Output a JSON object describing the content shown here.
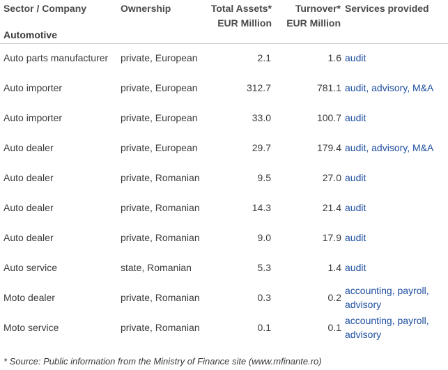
{
  "header": {
    "sector": "Sector / Company",
    "ownership": "Ownership",
    "total_assets": "Total Assets*",
    "total_assets_unit": "EUR Million",
    "turnover": "Turnover*",
    "turnover_unit": "EUR Million",
    "services": "Services provided"
  },
  "section": "Automotive",
  "rows": [
    {
      "sector": "Auto parts manufacturer",
      "ownership": "private, European",
      "total_assets": "2.1",
      "turnover": "1.6",
      "services": "audit"
    },
    {
      "sector": "Auto importer",
      "ownership": "private, European",
      "total_assets": "312.7",
      "turnover": "781.1",
      "services": "audit, advisory, M&A"
    },
    {
      "sector": "Auto importer",
      "ownership": "private, European",
      "total_assets": "33.0",
      "turnover": "100.7",
      "services": "audit"
    },
    {
      "sector": "Auto dealer",
      "ownership": "private, European",
      "total_assets": "29.7",
      "turnover": "179.4",
      "services": "audit, advisory, M&A"
    },
    {
      "sector": "Auto dealer",
      "ownership": "private, Romanian",
      "total_assets": "9.5",
      "turnover": "27.0",
      "services": "audit"
    },
    {
      "sector": "Auto dealer",
      "ownership": "private, Romanian",
      "total_assets": "14.3",
      "turnover": "21.4",
      "services": "audit"
    },
    {
      "sector": "Auto dealer",
      "ownership": "private, Romanian",
      "total_assets": "9.0",
      "turnover": "17.9",
      "services": "audit"
    },
    {
      "sector": "Auto service",
      "ownership": "state, Romanian",
      "total_assets": "5.3",
      "turnover": "1.4",
      "services": "audit"
    },
    {
      "sector": "Moto dealer",
      "ownership": "private, Romanian",
      "total_assets": "0.3",
      "turnover": "0.2",
      "services_line1": "accounting, payroll,",
      "services_line2": "advisory"
    },
    {
      "sector": "Moto service",
      "ownership": "private, Romanian",
      "total_assets": "0.1",
      "turnover": "0.1",
      "services_line1": "accounting, payroll,",
      "services_line2": "advisory"
    }
  ],
  "footnote": "* Source: Public information from the Ministry of Finance site (www.mfinante.ro)",
  "colors": {
    "link": "#1f4fa0",
    "text": "#3a3a3a"
  }
}
